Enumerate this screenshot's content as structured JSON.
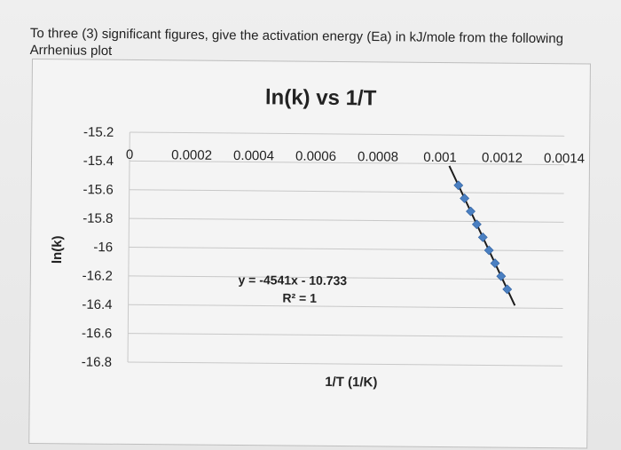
{
  "question": {
    "text": "To three (3) significant figures, give the activation energy (Ea) in kJ/mole from the following Arrhenius plot"
  },
  "colors": {
    "grid": "#c8c8c8",
    "marker": "#4a7fc1",
    "trendline": "#1c1c1c"
  },
  "chart_data": {
    "type": "scatter",
    "title": "ln(k) vs 1/T",
    "xlabel": "1/T (1/K)",
    "ylabel": "ln(k)",
    "xlim": [
      0,
      0.0014
    ],
    "ylim": [
      -16.8,
      -15.2
    ],
    "x_ticks": [
      "0",
      "0.0002",
      "0.0004",
      "0.0006",
      "0.0008",
      "0.001",
      "0.0012",
      "0.0014"
    ],
    "y_ticks": [
      "-15.2",
      "-15.4",
      "-15.6",
      "-15.8",
      "-16",
      "-16.2",
      "-16.4",
      "-16.6",
      "-16.8"
    ],
    "grid": true,
    "x_axis_position": "top",
    "legend": "none",
    "series": [
      {
        "x": [
          0.00106,
          0.00108,
          0.0011,
          0.00112,
          0.00114,
          0.00116,
          0.00118,
          0.0012,
          0.00122
        ],
        "y": [
          -15.55,
          -15.64,
          -15.73,
          -15.82,
          -15.91,
          -16.0,
          -16.09,
          -16.18,
          -16.27
        ],
        "trendline": true
      }
    ],
    "trendline_label": {
      "equation": "y = -4541x - 10.733",
      "r2": "R² = 1"
    }
  }
}
